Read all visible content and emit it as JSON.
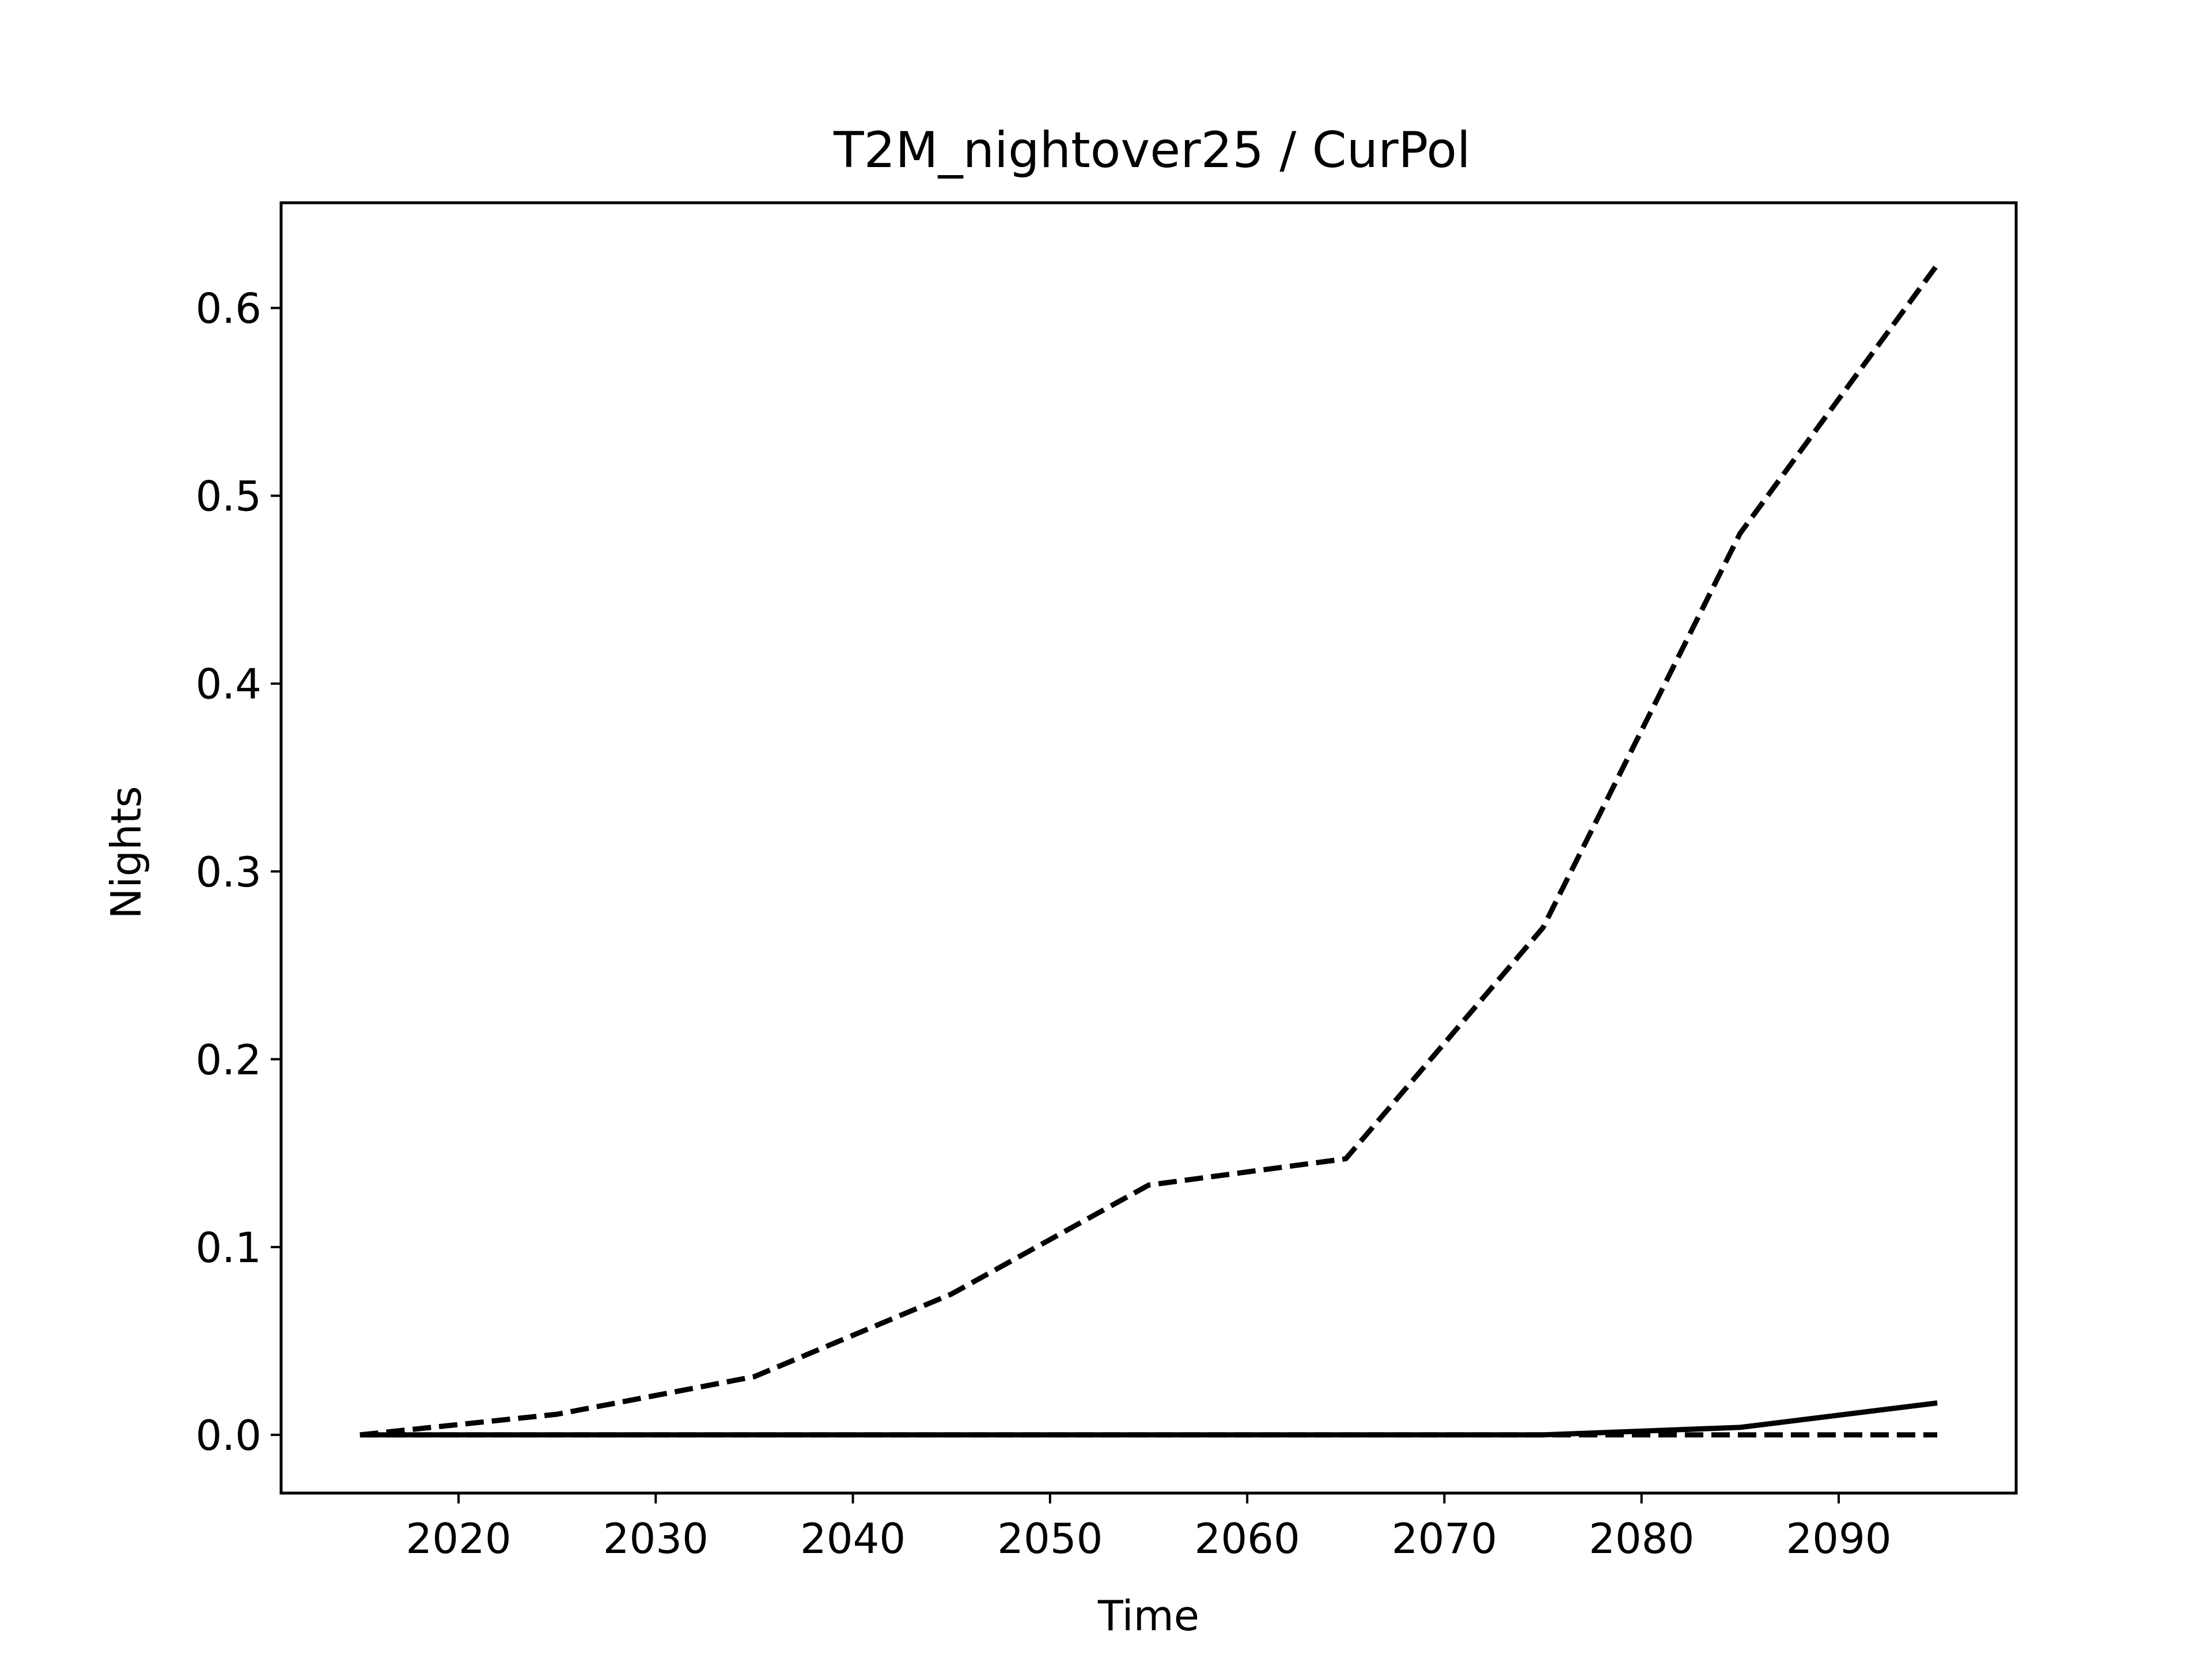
{
  "chart_data": {
    "type": "line",
    "title": "T2M_nightover25 / CurPol",
    "xlabel": "Time",
    "ylabel": "Nights",
    "xlim": [
      2011,
      2099
    ],
    "ylim": [
      -0.031,
      0.656
    ],
    "xticks": [
      2020,
      2030,
      2040,
      2050,
      2060,
      2070,
      2080,
      2090
    ],
    "yticks": [
      0.0,
      0.1,
      0.2,
      0.3,
      0.4,
      0.5,
      0.6
    ],
    "ytick_labels": [
      "0.0",
      "0.1",
      "0.2",
      "0.3",
      "0.4",
      "0.5",
      "0.6"
    ],
    "grid": false,
    "legend": false,
    "series": [
      {
        "style": "dashed",
        "color": "#000000",
        "x": [
          2015,
          2025,
          2035,
          2045,
          2055,
          2065,
          2075,
          2085,
          2095
        ],
        "y": [
          0.0,
          0.011,
          0.031,
          0.075,
          0.133,
          0.147,
          0.27,
          0.48,
          0.623
        ]
      },
      {
        "style": "solid",
        "color": "#000000",
        "x": [
          2015,
          2025,
          2035,
          2045,
          2055,
          2065,
          2075,
          2085,
          2095
        ],
        "y": [
          0.0,
          0.0,
          0.0,
          0.0,
          0.0,
          0.0,
          0.0,
          0.004,
          0.017
        ]
      },
      {
        "style": "dashed",
        "color": "#000000",
        "x": [
          2015,
          2025,
          2035,
          2045,
          2055,
          2065,
          2075,
          2085,
          2095
        ],
        "y": [
          0.0,
          0.0,
          0.0,
          0.0,
          0.0,
          0.0,
          0.0,
          0.0,
          0.0
        ]
      }
    ]
  }
}
